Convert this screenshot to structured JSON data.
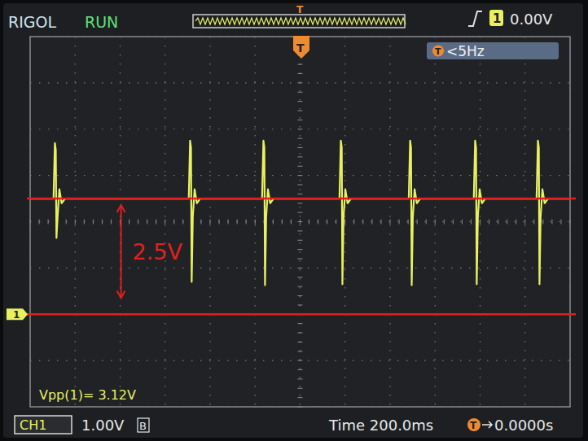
{
  "chart_data": {
    "type": "line",
    "x": [
      -1200,
      -1096,
      -1090,
      -1086,
      -1083,
      -1078,
      -1070,
      -1060,
      -1045,
      -495,
      -489,
      -485,
      -482,
      -477,
      -469,
      -459,
      -444,
      -169,
      -163,
      -159,
      -156,
      -151,
      -143,
      -133,
      -118,
      175,
      181,
      185,
      188,
      193,
      201,
      211,
      226,
      483,
      489,
      493,
      496,
      501,
      509,
      519,
      534,
      772,
      778,
      782,
      785,
      790,
      798,
      808,
      823,
      1051,
      1057,
      1061,
      1064,
      1069,
      1077,
      1087,
      1102,
      1200
    ],
    "values": [
      2.5,
      2.5,
      3.7,
      3.55,
      1.65,
      2.1,
      2.7,
      2.4,
      2.5,
      2.5,
      3.75,
      3.6,
      0.7,
      2.1,
      2.7,
      2.4,
      2.5,
      2.5,
      3.75,
      3.6,
      0.63,
      2.1,
      2.7,
      2.4,
      2.5,
      2.5,
      3.75,
      3.6,
      0.65,
      2.1,
      2.7,
      2.4,
      2.5,
      2.5,
      3.75,
      3.6,
      0.63,
      2.1,
      2.7,
      2.4,
      2.5,
      2.5,
      3.75,
      3.6,
      0.65,
      2.1,
      2.7,
      2.4,
      2.5,
      2.5,
      3.75,
      3.6,
      0.65,
      2.1,
      2.7,
      2.4,
      2.5,
      2.5
    ],
    "color": "#e8f060",
    "xlim": [
      -1200,
      1200
    ],
    "xticks": [
      -1200,
      -1000,
      -800,
      -600,
      -400,
      -200,
      0,
      200,
      400,
      600,
      800,
      1000,
      1200
    ],
    "ylim": [
      -2,
      6
    ],
    "yticks": [
      -2,
      -1,
      0,
      1,
      2,
      3,
      4,
      5,
      6
    ],
    "grid": true,
    "tick_labels": false,
    "reference_lines": [
      {
        "y": 2.5,
        "color": "#e0201c"
      },
      {
        "y": 0,
        "color": "#e0201c"
      }
    ],
    "annotations": [
      {
        "label": "2.5V",
        "x": -796,
        "y_from": 0,
        "y_to": 2.5,
        "color": "#e0201c"
      }
    ]
  },
  "scope": {
    "brand": "RIGOL",
    "status": "RUN",
    "trigger_marker": "T",
    "trigger_source": "1",
    "trigger_level": "0.00V",
    "frequency": "<5Hz",
    "measurement": "Vpp(1)= 3.12V",
    "channel": "CH1",
    "volts_per_div": "1.00V",
    "coupling": "B",
    "time_label": "Time 200.0ms",
    "trigger_offset": "0.0000s",
    "ground_marker": "1"
  }
}
